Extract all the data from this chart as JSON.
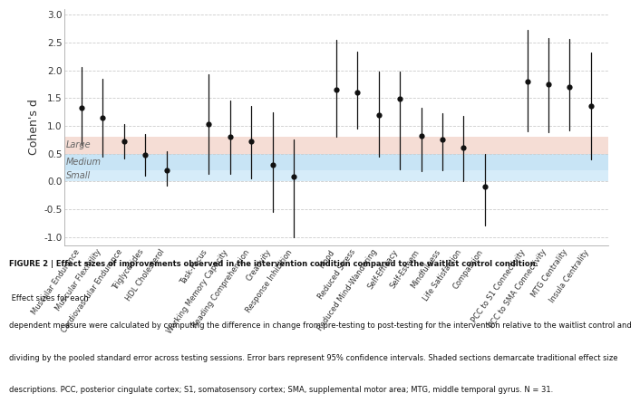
{
  "categories": [
    "Muscular Endurance",
    "Muscular Flexibility",
    "Cardiovascular Endurance",
    "Triglycerides",
    "HDL Cholesterol",
    "Task-Focus",
    "Working Memory Capacity",
    "Reading Comprehension",
    "Creativity",
    "Response Inhibition",
    "Mood",
    "Reduced Stress",
    "Reduced Mind-Wandering",
    "Self-Efficacy",
    "Self-Esteem",
    "Mindfulness",
    "Life Satisfaction",
    "Compassion",
    "PCC to S1 Connectivity",
    "PCC to SMA Connectivity",
    "MTG Centrality",
    "Insula Centrality"
  ],
  "centers": [
    1.32,
    1.15,
    0.72,
    0.47,
    0.2,
    1.03,
    0.8,
    0.72,
    0.3,
    0.08,
    1.65,
    1.6,
    1.2,
    1.48,
    0.82,
    0.75,
    0.6,
    -0.1,
    1.8,
    1.75,
    1.7,
    1.35
  ],
  "lower": [
    0.65,
    0.45,
    0.42,
    0.1,
    -0.08,
    0.13,
    0.13,
    0.05,
    -0.55,
    -1.0,
    0.8,
    0.95,
    0.45,
    0.22,
    0.18,
    0.2,
    0.0,
    -0.8,
    0.9,
    0.88,
    0.92,
    0.4
  ],
  "upper": [
    2.05,
    1.85,
    1.03,
    0.85,
    0.55,
    1.93,
    1.45,
    1.35,
    1.25,
    0.75,
    2.55,
    2.33,
    1.98,
    1.97,
    1.33,
    1.22,
    1.17,
    0.5,
    2.72,
    2.58,
    2.57,
    2.32
  ],
  "positions": [
    0,
    1,
    2,
    3,
    4,
    6,
    7,
    8,
    9,
    10,
    12,
    13,
    14,
    15,
    16,
    17,
    18,
    19,
    21,
    22,
    23,
    24
  ],
  "band_small_lo": 0.0,
  "band_small_hi": 0.2,
  "band_medium_lo": 0.2,
  "band_medium_hi": 0.5,
  "band_large_lo": 0.5,
  "band_large_hi": 0.8,
  "color_small": "#d6ecf9",
  "color_medium": "#c8e4f5",
  "color_large": "#f5ddd5",
  "ylim": [
    -1.15,
    3.1
  ],
  "yticks": [
    -1.0,
    -0.5,
    0.0,
    0.5,
    1.0,
    1.5,
    2.0,
    2.5,
    3.0
  ],
  "ylabel": "Cohen's d",
  "dot_color": "#111111",
  "line_color": "#111111",
  "grid_color": "#cccccc",
  "bg_color": "#ffffff",
  "label_large": "Large",
  "label_medium": "Medium",
  "label_small": "Small",
  "caption_bold": "FIGURE 2 | Effect sizes of improvements observed in the intervention condition compared to the waitlist control condition.",
  "caption_normal": " Effect sizes for each dependent measure were calculated by computing the difference in change from pre-testing to post-testing for the intervention relative to the waitlist control and dividing by the pooled standard error across testing sessions. Error bars represent 95% confidence intervals. Shaded sections demarcate traditional effect size descriptions. PCC, posterior cingulate cortex; S1, somatosensory cortex; SMA, supplemental motor area; MTG, middle temporal gyrus. Υ = 31."
}
